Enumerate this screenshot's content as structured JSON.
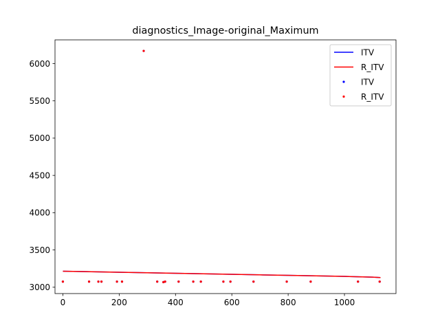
{
  "chart_data": {
    "type": "line+scatter",
    "title": "diagnostics_Image-original_Maximum",
    "xlabel": "",
    "ylabel": "",
    "xlim": [
      -28,
      1183
    ],
    "ylim": [
      2915,
      6318
    ],
    "xticks": [
      0,
      200,
      400,
      600,
      800,
      1000
    ],
    "yticks": [
      3000,
      3500,
      4000,
      4500,
      5000,
      5500,
      6000
    ],
    "grid": false,
    "legend_position": "top-right",
    "colors": {
      "itv": "#0000ff",
      "r_itv": "#ff0000",
      "axes": "#000000",
      "background": "#ffffff"
    },
    "series": [
      {
        "name": "ITV",
        "kind": "line",
        "color": "#0000ff",
        "x": [
          0,
          100,
          200,
          300,
          400,
          500,
          600,
          700,
          800,
          900,
          1000,
          1100,
          1128
        ],
        "y": [
          3215,
          3208,
          3201,
          3194,
          3187,
          3180,
          3173,
          3166,
          3159,
          3152,
          3145,
          3135,
          3130
        ]
      },
      {
        "name": "R_ITV",
        "kind": "line",
        "color": "#ff0000",
        "x": [
          0,
          100,
          200,
          300,
          400,
          500,
          600,
          700,
          800,
          900,
          1000,
          1100,
          1128
        ],
        "y": [
          3215,
          3208,
          3201,
          3194,
          3187,
          3180,
          3173,
          3166,
          3159,
          3152,
          3145,
          3135,
          3130
        ]
      },
      {
        "name": "ITV",
        "kind": "scatter",
        "color": "#0000ff",
        "x": [
          0,
          93,
          126,
          137,
          192,
          210,
          287,
          335,
          357,
          363,
          411,
          463,
          490,
          570,
          595,
          677,
          795,
          880,
          1048,
          1125
        ],
        "y": [
          3075,
          3075,
          3075,
          3075,
          3075,
          3075,
          6170,
          3075,
          3068,
          3075,
          3075,
          3075,
          3075,
          3075,
          3075,
          3075,
          3075,
          3075,
          3075,
          3075
        ]
      },
      {
        "name": "R_ITV",
        "kind": "scatter",
        "color": "#ff0000",
        "x": [
          0,
          93,
          126,
          137,
          192,
          210,
          287,
          335,
          357,
          363,
          411,
          463,
          490,
          570,
          595,
          677,
          795,
          880,
          1048,
          1125
        ],
        "y": [
          3075,
          3075,
          3075,
          3075,
          3075,
          3075,
          6170,
          3075,
          3068,
          3075,
          3075,
          3075,
          3075,
          3075,
          3075,
          3075,
          3075,
          3075,
          3075,
          3075
        ]
      }
    ],
    "legend": [
      {
        "label": "ITV",
        "marker": "line",
        "color": "#0000ff"
      },
      {
        "label": "R_ITV",
        "marker": "line",
        "color": "#ff0000"
      },
      {
        "label": "ITV",
        "marker": "dot",
        "color": "#0000ff"
      },
      {
        "label": "R_ITV",
        "marker": "dot",
        "color": "#ff0000"
      }
    ]
  }
}
